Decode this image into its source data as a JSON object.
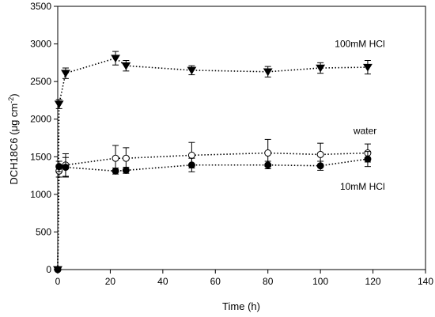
{
  "chart_data": {
    "type": "scatter",
    "xlabel": "Time (h)",
    "ylabel_main": "DCH18C6 (μg cm",
    "ylabel_sup": "-2",
    "ylabel_close": ")",
    "xlim": [
      0,
      140
    ],
    "ylim": [
      0,
      3500
    ],
    "xticks": [
      0,
      20,
      40,
      60,
      80,
      100,
      120,
      140
    ],
    "yticks": [
      0,
      500,
      1000,
      1500,
      2000,
      2500,
      3000,
      3500
    ],
    "grid": false,
    "series": [
      {
        "name": "100mM HCl",
        "marker": "triangle-down",
        "fill": "#000000",
        "points": [
          {
            "x": 0,
            "y": 0,
            "err": 0
          },
          {
            "x": 0.5,
            "y": 2200,
            "err": 60
          },
          {
            "x": 3,
            "y": 2610,
            "err": 70
          },
          {
            "x": 22,
            "y": 2810,
            "err": 90
          },
          {
            "x": 26,
            "y": 2710,
            "err": 70
          },
          {
            "x": 51,
            "y": 2650,
            "err": 60
          },
          {
            "x": 80,
            "y": 2630,
            "err": 70
          },
          {
            "x": 100,
            "y": 2680,
            "err": 70
          },
          {
            "x": 118,
            "y": 2690,
            "err": 90
          }
        ]
      },
      {
        "name": "water",
        "marker": "circle",
        "fill": "#ffffff",
        "points": [
          {
            "x": 0,
            "y": 0,
            "err": 0
          },
          {
            "x": 0.5,
            "y": 1310,
            "err": 80
          },
          {
            "x": 3,
            "y": 1390,
            "err": 150
          },
          {
            "x": 22,
            "y": 1480,
            "err": 170
          },
          {
            "x": 26,
            "y": 1480,
            "err": 140
          },
          {
            "x": 51,
            "y": 1520,
            "err": 170
          },
          {
            "x": 80,
            "y": 1550,
            "err": 180
          },
          {
            "x": 100,
            "y": 1530,
            "err": 150
          },
          {
            "x": 118,
            "y": 1550,
            "err": 120
          }
        ]
      },
      {
        "name": "10mM HCl",
        "marker": "circle",
        "fill": "#000000",
        "points": [
          {
            "x": 0,
            "y": 0,
            "err": 0
          },
          {
            "x": 0.5,
            "y": 1370,
            "err": 70
          },
          {
            "x": 3,
            "y": 1360,
            "err": 130
          },
          {
            "x": 22,
            "y": 1310,
            "err": 40
          },
          {
            "x": 26,
            "y": 1320,
            "err": 40
          },
          {
            "x": 51,
            "y": 1390,
            "err": 90
          },
          {
            "x": 80,
            "y": 1390,
            "err": 50
          },
          {
            "x": 100,
            "y": 1380,
            "err": 60
          },
          {
            "x": 118,
            "y": 1470,
            "err": 100
          }
        ]
      }
    ],
    "annotations": [
      {
        "text": "100mM HCl",
        "x": 115,
        "y": 2960
      },
      {
        "text": "water",
        "x": 117,
        "y": 1800
      },
      {
        "text": "10mM HCl",
        "x": 116,
        "y": 1060
      }
    ]
  }
}
